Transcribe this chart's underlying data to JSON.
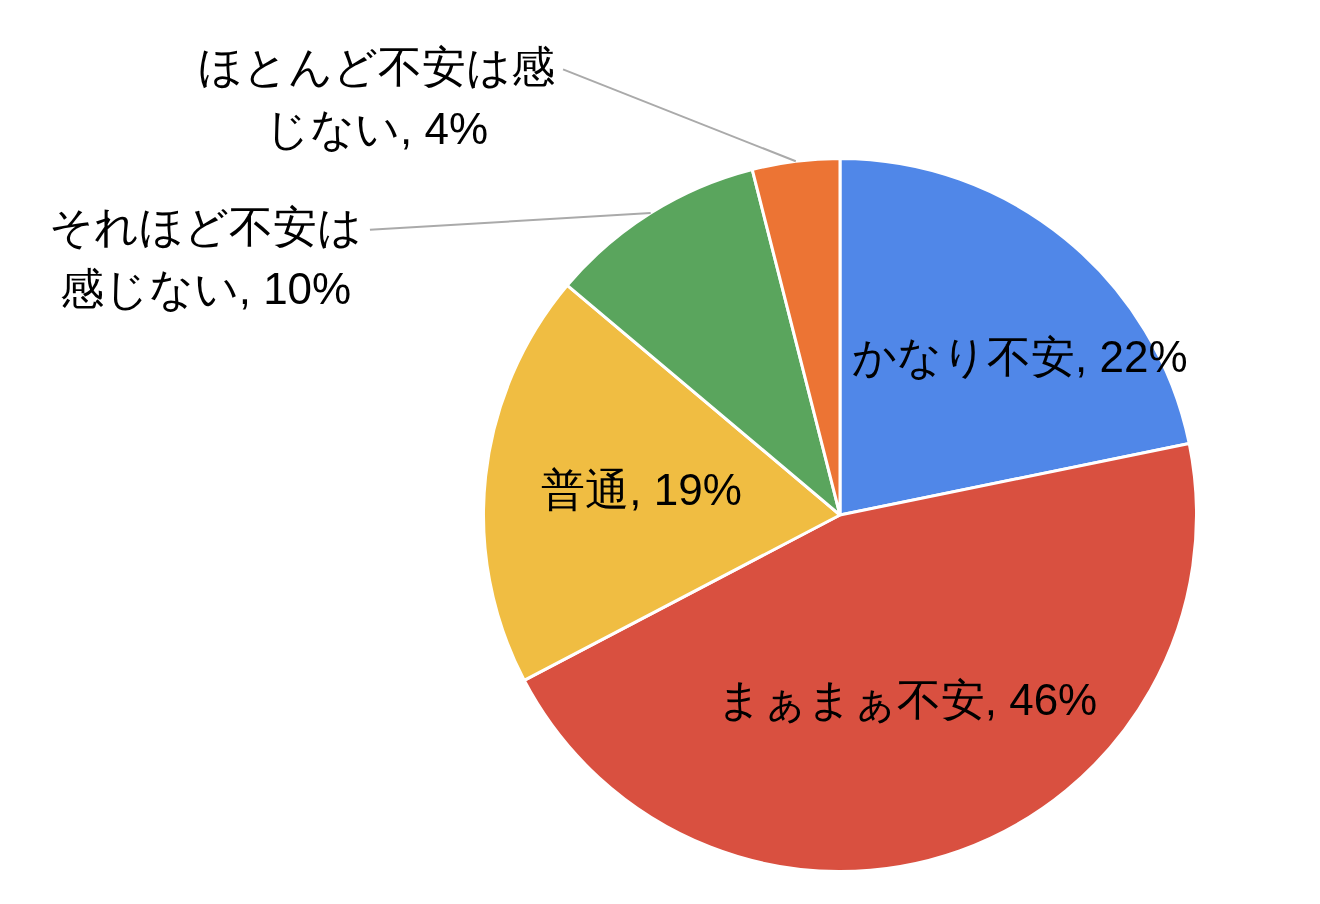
{
  "chart_data": {
    "type": "pie",
    "categories": [
      "かなり不安",
      "まぁまぁ不安",
      "普通",
      "それほど不安は感じない",
      "ほとんど不安は感じない"
    ],
    "values": [
      22,
      46,
      19,
      10,
      4
    ],
    "value_labels": [
      "22%",
      "46%",
      "19%",
      "10%",
      "4%"
    ],
    "colors": [
      "#5087e8",
      "#d95040",
      "#f0bd42",
      "#5aa55d",
      "#ec7434"
    ],
    "legend": false
  }
}
